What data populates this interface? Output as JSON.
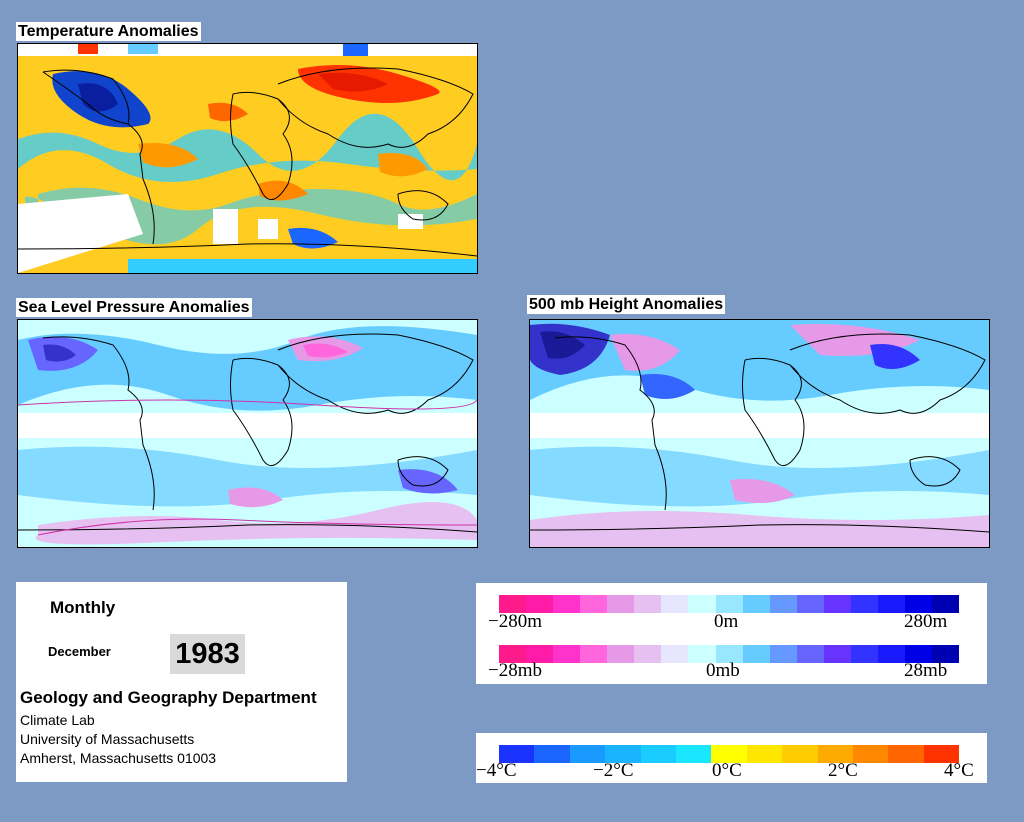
{
  "panels": {
    "temperature": {
      "title": "Temperature Anomalies"
    },
    "slp": {
      "title": "Sea Level Pressure Anomalies"
    },
    "height500": {
      "title": "500 mb Height Anomalies"
    }
  },
  "info": {
    "period": "Monthly",
    "month": "December",
    "year": "1983",
    "department": "Geology and Geography Department",
    "lab": "Climate Lab",
    "university": "University of Massachusetts",
    "address": "Amherst, Massachusetts 01003"
  },
  "legends": {
    "height": {
      "min": "−280m",
      "mid": "0m",
      "max": "280m",
      "colors": [
        "#ff1a8c",
        "#ff1aa8",
        "#ff33cc",
        "#ff66dd",
        "#e699e6",
        "#e6c0f0",
        "#e6e6ff",
        "#ccffff",
        "#99e6ff",
        "#66ccff",
        "#6699ff",
        "#6666ff",
        "#6633ff",
        "#3333ff",
        "#1a1aff",
        "#0000e6",
        "#0000b3"
      ]
    },
    "pressure": {
      "min": "−28mb",
      "mid": "0mb",
      "max": "28mb",
      "colors": [
        "#ff1a8c",
        "#ff1aa8",
        "#ff33cc",
        "#ff66dd",
        "#e699e6",
        "#e6c0f0",
        "#e6e6ff",
        "#ccffff",
        "#99e6ff",
        "#66ccff",
        "#6699ff",
        "#6666ff",
        "#6633ff",
        "#3333ff",
        "#1a1aff",
        "#0000e6",
        "#0000b3"
      ]
    },
    "temperature": {
      "labels": [
        "−4°C",
        "−2°C",
        "0°C",
        "2°C",
        "4°C"
      ],
      "cold_colors": [
        "#1a33ff",
        "#1a66ff",
        "#1a99ff",
        "#1ab3ff",
        "#1accff",
        "#1ae6ff"
      ],
      "warm_colors": [
        "#ffff00",
        "#ffe600",
        "#ffcc00",
        "#ffaa00",
        "#ff8800",
        "#ff6600",
        "#ff3300"
      ]
    }
  },
  "colors": {
    "background": "#7c9ac4",
    "warm": "#ffcc33",
    "cold": "#33ccff"
  }
}
